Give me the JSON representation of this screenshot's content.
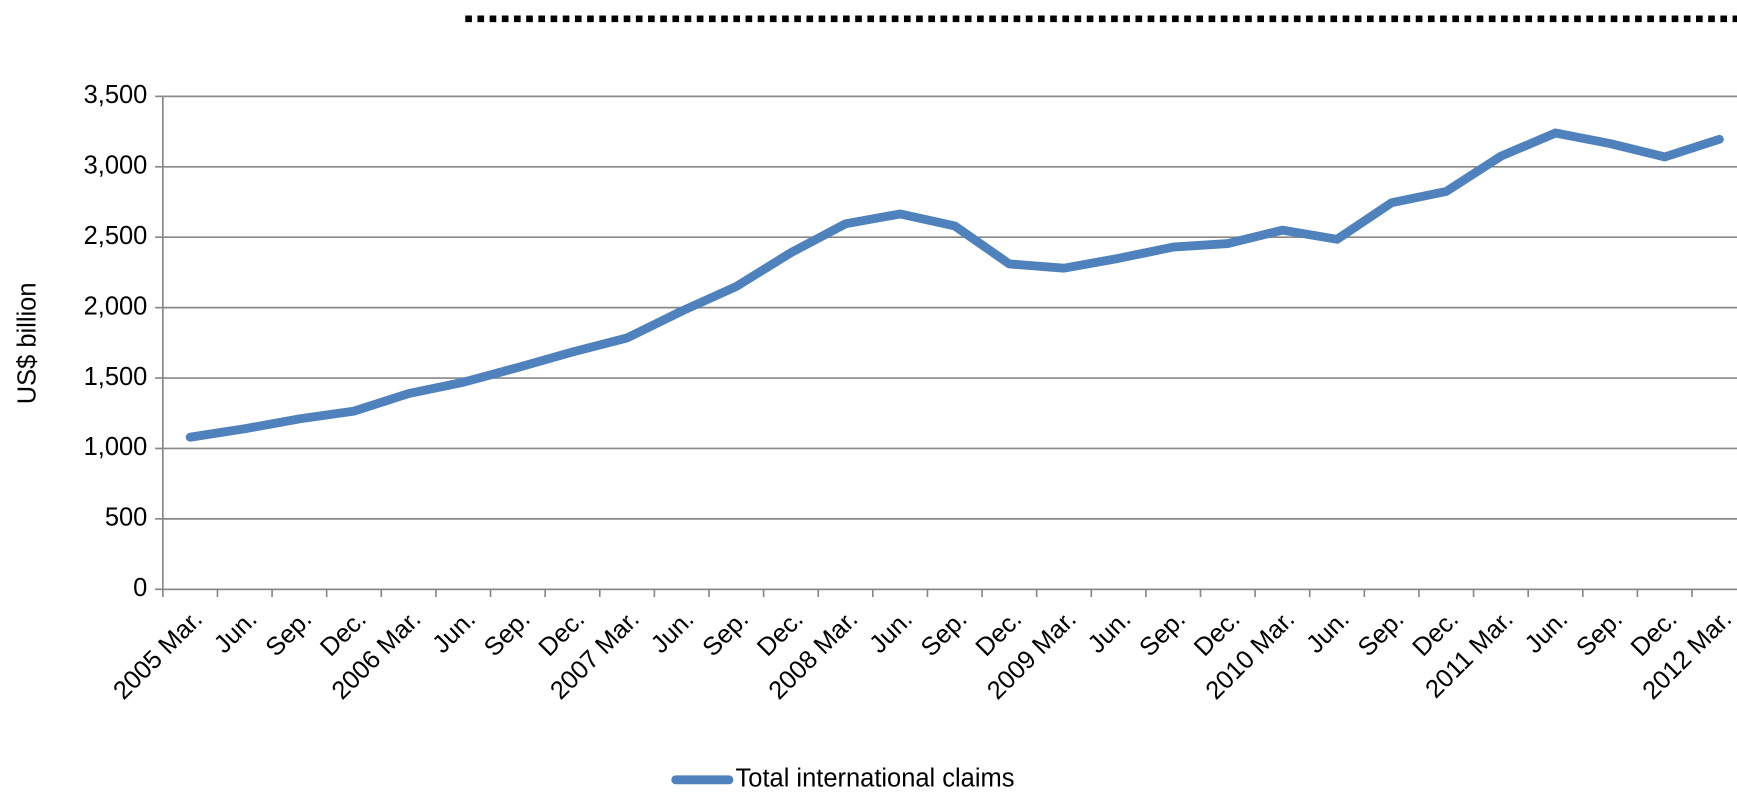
{
  "chart_data": {
    "type": "line",
    "y_label": "US$ billion",
    "categories": [
      "2005 Mar.",
      "Jun.",
      "Sep.",
      "Dec.",
      "2006 Mar.",
      "Jun.",
      "Sep.",
      "Dec.",
      "2007 Mar.",
      "Jun.",
      "Sep.",
      "Dec.",
      "2008 Mar.",
      "Jun.",
      "Sep.",
      "Dec.",
      "2009 Mar.",
      "Jun.",
      "Sep.",
      "Dec.",
      "2010 Mar.",
      "Jun.",
      "Sep.",
      "Dec.",
      "2011 Mar.",
      "Jun.",
      "Sep.",
      "Dec.",
      "2012 Mar."
    ],
    "series": [
      {
        "name": "Total international claims",
        "color": "#4f81bd",
        "values": [
          1080,
          1140,
          1210,
          1265,
          1390,
          1470,
          1575,
          1685,
          1785,
          1975,
          2150,
          2390,
          2595,
          2665,
          2580,
          2310,
          2280,
          2350,
          2430,
          2455,
          2550,
          2485,
          2745,
          2825,
          3075,
          3240,
          3165,
          3070,
          3195
        ]
      }
    ],
    "ylim": [
      0,
      3500
    ],
    "yticks": [
      0,
      500,
      {
        "value": 1000,
        "label": "1,000"
      },
      {
        "value": 1500,
        "label": "1,500"
      },
      {
        "value": 2000,
        "label": "2,000"
      },
      {
        "value": 2500,
        "label": "2,500"
      },
      {
        "value": 3000,
        "label": "3,000"
      },
      {
        "value": 3500,
        "label": "3,500"
      }
    ],
    "grid": true,
    "legend": "bottom"
  }
}
